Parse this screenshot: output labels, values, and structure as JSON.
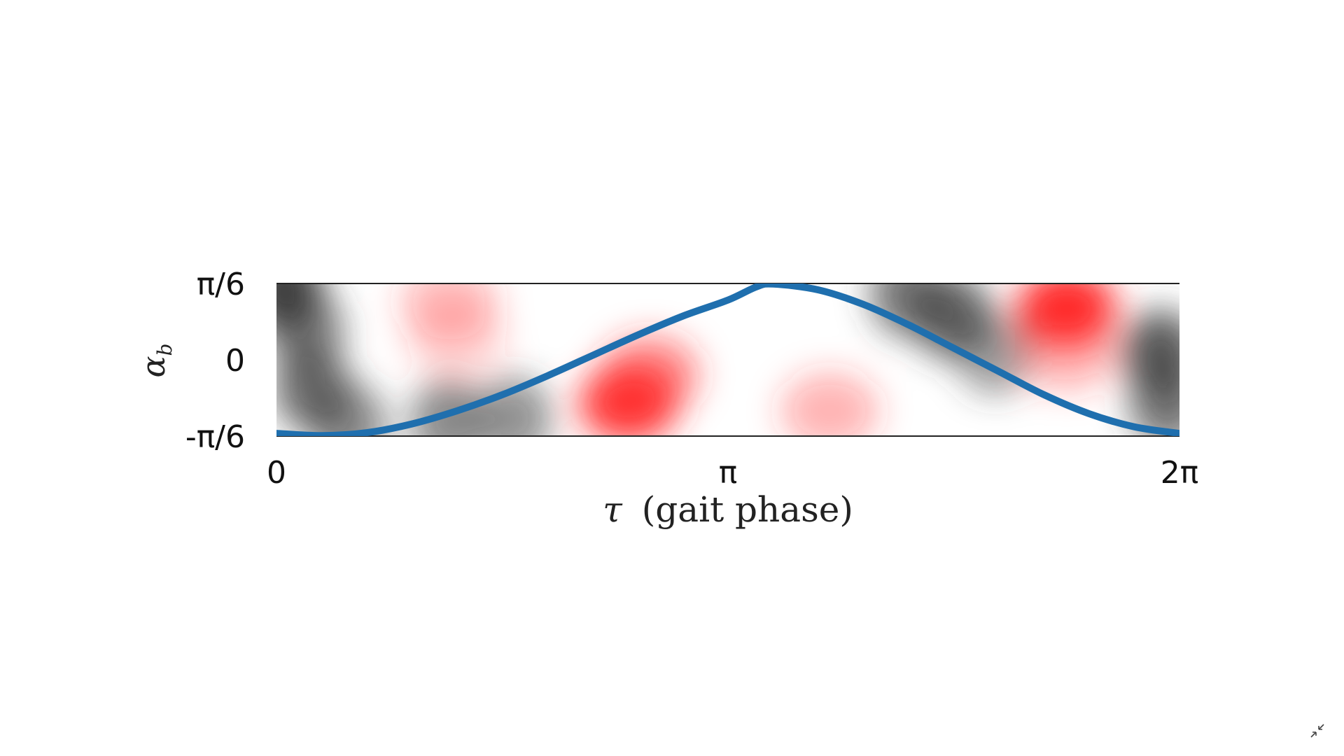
{
  "chart_data": {
    "type": "line",
    "title": "",
    "xlabel": "τ (gait phase)",
    "xlabel_symbol": "τ",
    "xlabel_text": "(gait phase)",
    "ylabel": "α_b",
    "ylabel_main": "α",
    "ylabel_sub": "b",
    "xlim": [
      0,
      6.2832
    ],
    "ylim": [
      -0.5236,
      0.5236
    ],
    "xticks": [
      {
        "value": 0,
        "label": "0"
      },
      {
        "value": 3.1416,
        "label": "π"
      },
      {
        "value": 6.2832,
        "label": "2π"
      }
    ],
    "yticks": [
      {
        "value": 0.5236,
        "label": "π/6"
      },
      {
        "value": 0,
        "label": "0"
      },
      {
        "value": -0.5236,
        "label": "-π/6"
      }
    ],
    "grid": false,
    "series": [
      {
        "color": "#1f6fae",
        "x": [
          0,
          0.3142,
          0.6283,
          0.9425,
          1.2566,
          1.5708,
          1.885,
          2.1991,
          2.5133,
          2.8274,
          3.1416,
          3.3379,
          3.4558,
          3.7699,
          4.0841,
          4.3982,
          4.7124,
          5.0265,
          5.3407,
          5.6549,
          5.969,
          6.2832
        ],
        "y": [
          -0.505,
          -0.52,
          -0.5,
          -0.44,
          -0.35,
          -0.24,
          -0.11,
          0.03,
          0.17,
          0.3,
          0.41,
          0.5,
          0.52,
          0.48,
          0.38,
          0.24,
          0.08,
          -0.08,
          -0.24,
          -0.37,
          -0.46,
          -0.505
        ]
      }
    ],
    "heatmap_background": {
      "gray_color": "#3c3c3c",
      "red_color": "#ff2a2a",
      "gray_blobs": [
        {
          "x": 0.05,
          "y": 0.48,
          "strength": 1.0
        },
        {
          "x": 0.2,
          "y": 0.2,
          "strength": 0.65
        },
        {
          "x": 0.25,
          "y": -0.2,
          "strength": 0.75
        },
        {
          "x": 0.5,
          "y": -0.45,
          "strength": 0.6
        },
        {
          "x": 1.2,
          "y": -0.42,
          "strength": 0.6
        },
        {
          "x": 1.65,
          "y": -0.4,
          "strength": 0.55
        },
        {
          "x": 4.4,
          "y": 0.45,
          "strength": 0.7
        },
        {
          "x": 4.7,
          "y": 0.3,
          "strength": 0.8
        },
        {
          "x": 5.0,
          "y": 0.05,
          "strength": 0.5
        },
        {
          "x": 6.15,
          "y": 0.05,
          "strength": 0.85
        },
        {
          "x": 6.2,
          "y": -0.3,
          "strength": 0.7
        }
      ],
      "red_blobs": [
        {
          "x": 1.2,
          "y": 0.4,
          "strength": 0.3
        },
        {
          "x": 1.25,
          "y": 0.15,
          "strength": 0.2
        },
        {
          "x": 2.45,
          "y": -0.3,
          "strength": 0.95
        },
        {
          "x": 2.6,
          "y": -0.1,
          "strength": 0.55
        },
        {
          "x": 3.85,
          "y": -0.35,
          "strength": 0.35
        },
        {
          "x": 5.5,
          "y": 0.36,
          "strength": 1.0
        },
        {
          "x": 5.5,
          "y": 0.05,
          "strength": 0.35
        }
      ]
    }
  },
  "ui": {
    "exit_fullscreen_icon": "exit-fullscreen-icon"
  }
}
